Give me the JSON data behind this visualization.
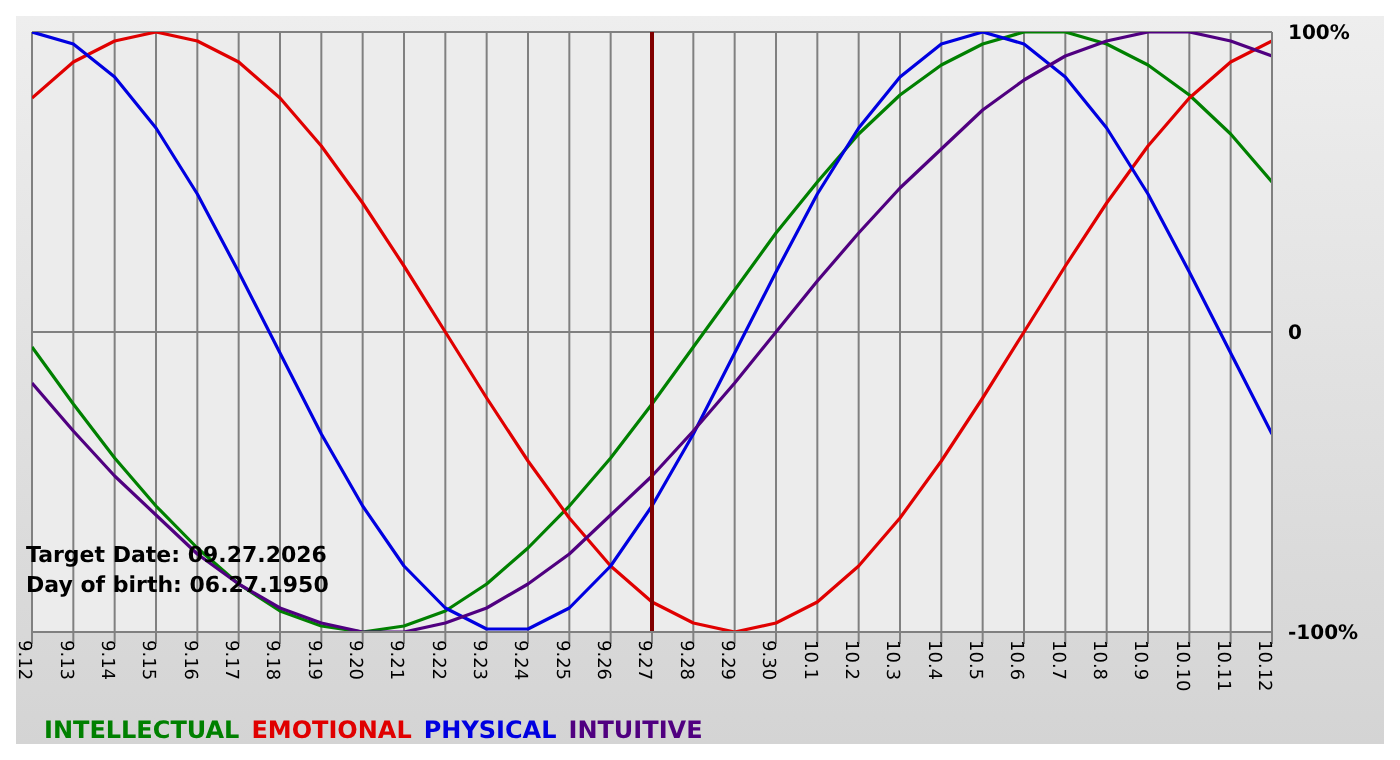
{
  "chart_data": {
    "type": "line",
    "categories": [
      "9.12",
      "9.13",
      "9.14",
      "9.15",
      "9.16",
      "9.17",
      "9.18",
      "9.19",
      "9.20",
      "9.21",
      "9.22",
      "9.23",
      "9.24",
      "9.25",
      "9.26",
      "9.27",
      "9.28",
      "9.29",
      "9.30",
      "10.1",
      "10.2",
      "10.3",
      "10.4",
      "10.5",
      "10.6",
      "10.7",
      "10.8",
      "10.9",
      "10.10",
      "10.11",
      "10.12"
    ],
    "series": [
      {
        "name": "INTELLECTUAL",
        "color": "#008000",
        "values": [
          -5,
          -24,
          -42,
          -58,
          -72,
          -84,
          -93,
          -98,
          -100,
          -98,
          -93,
          -84,
          -72,
          -58,
          -42,
          -24,
          -5,
          14,
          33,
          50,
          66,
          79,
          89,
          96,
          100,
          100,
          96,
          89,
          79,
          66,
          50
        ]
      },
      {
        "name": "EMOTIONAL",
        "color": "#e00000",
        "values": [
          78,
          90,
          97,
          100,
          97,
          90,
          78,
          62,
          43,
          22,
          0,
          -22,
          -43,
          -62,
          -78,
          -90,
          -97,
          -100,
          -97,
          -90,
          -78,
          -62,
          -43,
          -22,
          0,
          22,
          43,
          62,
          78,
          90,
          97
        ]
      },
      {
        "name": "PHYSICAL",
        "color": "#0000e0",
        "values": [
          100,
          96,
          85,
          68,
          46,
          20,
          -7,
          -34,
          -58,
          -78,
          -92,
          -99,
          -99,
          -92,
          -78,
          -58,
          -34,
          -7,
          20,
          46,
          68,
          85,
          96,
          100,
          96,
          85,
          68,
          46,
          20,
          -7,
          -34
        ]
      },
      {
        "name": "INTUITIVE",
        "color": "#500080",
        "values": [
          -17,
          -33,
          -48,
          -61,
          -74,
          -84,
          -92,
          -97,
          -100,
          -100,
          -97,
          -92,
          -84,
          -74,
          -61,
          -48,
          -33,
          -17,
          0,
          17,
          33,
          48,
          61,
          74,
          84,
          92,
          97,
          100,
          100,
          97,
          92
        ]
      }
    ],
    "ylim": [
      -100,
      100
    ],
    "yticks": [
      {
        "value": 100,
        "label": "100%"
      },
      0,
      {
        "value": -100,
        "label": "-100%"
      }
    ],
    "grid": true,
    "legend": "bottom left",
    "marker": "none",
    "line_style": "solid",
    "ref_lines": [
      {
        "axis": "x",
        "value": "9.27",
        "color": "#800000"
      }
    ],
    "annotations": [
      "Target Date: 09.27.2026",
      "Day of birth: 06.27.1950"
    ]
  }
}
